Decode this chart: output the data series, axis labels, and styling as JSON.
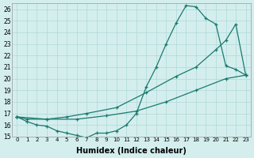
{
  "xlabel": "Humidex (Indice chaleur)",
  "xlim": [
    -0.5,
    23.5
  ],
  "ylim": [
    15,
    26.5
  ],
  "yticks": [
    15,
    16,
    17,
    18,
    19,
    20,
    21,
    22,
    23,
    24,
    25,
    26
  ],
  "xticks": [
    0,
    1,
    2,
    3,
    4,
    5,
    6,
    7,
    8,
    9,
    10,
    11,
    12,
    13,
    14,
    15,
    16,
    17,
    18,
    19,
    20,
    21,
    22,
    23
  ],
  "background_color": "#d4eeee",
  "grid_color": "#b0d8d8",
  "line_color": "#1a7a6e",
  "line1_x": [
    0,
    1,
    2,
    3,
    4,
    5,
    6,
    7,
    8,
    9,
    10,
    11,
    12,
    13,
    14,
    15,
    16,
    17,
    18,
    19,
    20,
    21,
    22,
    23
  ],
  "line1_y": [
    16.7,
    16.3,
    16.0,
    15.9,
    15.5,
    15.3,
    15.1,
    14.9,
    15.3,
    15.3,
    15.5,
    16.0,
    17.0,
    19.3,
    21.0,
    23.0,
    24.8,
    26.3,
    26.2,
    25.2,
    24.7,
    21.1,
    20.8,
    20.3
  ],
  "line2_x": [
    0,
    1,
    3,
    5,
    7,
    10,
    13,
    16,
    18,
    20,
    21,
    22,
    23
  ],
  "line2_y": [
    16.7,
    16.5,
    16.5,
    16.7,
    17.0,
    17.5,
    18.8,
    20.2,
    21.0,
    22.5,
    23.3,
    24.7,
    20.3
  ],
  "line3_x": [
    0,
    3,
    6,
    9,
    12,
    15,
    18,
    21,
    23
  ],
  "line3_y": [
    16.7,
    16.5,
    16.5,
    16.8,
    17.2,
    18.0,
    19.0,
    20.0,
    20.3
  ]
}
